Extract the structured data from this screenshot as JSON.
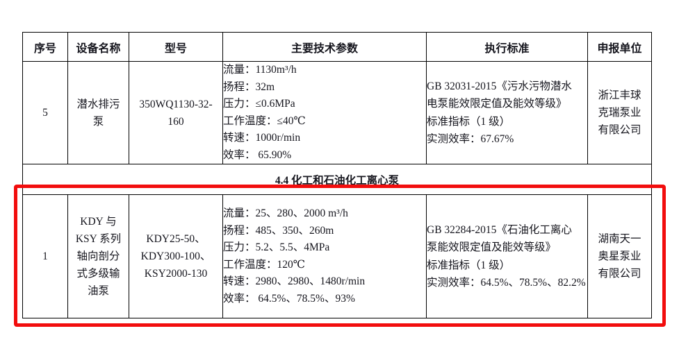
{
  "annotation": {
    "highlight_color": "#f20d0d",
    "purpose": "red-highlight-rectangle"
  },
  "table": {
    "headers": [
      "序号",
      "设备名称",
      "型号",
      "主要技术参数",
      "执行标准",
      "申报单位"
    ],
    "section_title": "4.4 化工和石油化工离心泵",
    "rows": [
      {
        "index": "5",
        "name_lines": [
          "潜水排污",
          "泵"
        ],
        "model_lines": [
          "350WQ1130-32-",
          "160"
        ],
        "param_lines": [
          "流量：1130m³/h",
          "扬程：32m",
          "压力：≤0.6MPa",
          "工作温度：≤40℃",
          "转速：1000r/min",
          "效率： 65.90%"
        ],
        "standard_lines": [
          "GB 32031-2015《污水污物潜水",
          "电泵能效限定值及能效等级》",
          "标准指标（1 级）",
          "实测效率：67.67%"
        ],
        "company_lines": [
          "浙江丰球",
          "克瑞泵业",
          "有限公司"
        ]
      },
      {
        "index": "1",
        "name_lines": [
          "KDY 与",
          "KSY 系列",
          "轴向剖分",
          "式多级输",
          "油泵"
        ],
        "model_lines": [
          "KDY25-50、",
          "KDY300-100、",
          "KSY2000-130"
        ],
        "param_lines": [
          "流量：25、280、2000 m³/h",
          "扬程：485、350、260m",
          "压力：5.2、5.5、4MPa",
          "工作温度：120℃",
          "转速：2980、2980、1480r/min",
          "效率： 64.5%、78.5%、93%"
        ],
        "standard_lines": [
          "GB 32284-2015《石油化工离心",
          "泵能效限定值及能效等级》",
          "标准指标（1 级）",
          "实测效率：64.5%、78.5%、82.2%"
        ],
        "company_lines": [
          "湖南天一",
          "奥星泵业",
          "有限公司"
        ]
      }
    ]
  }
}
